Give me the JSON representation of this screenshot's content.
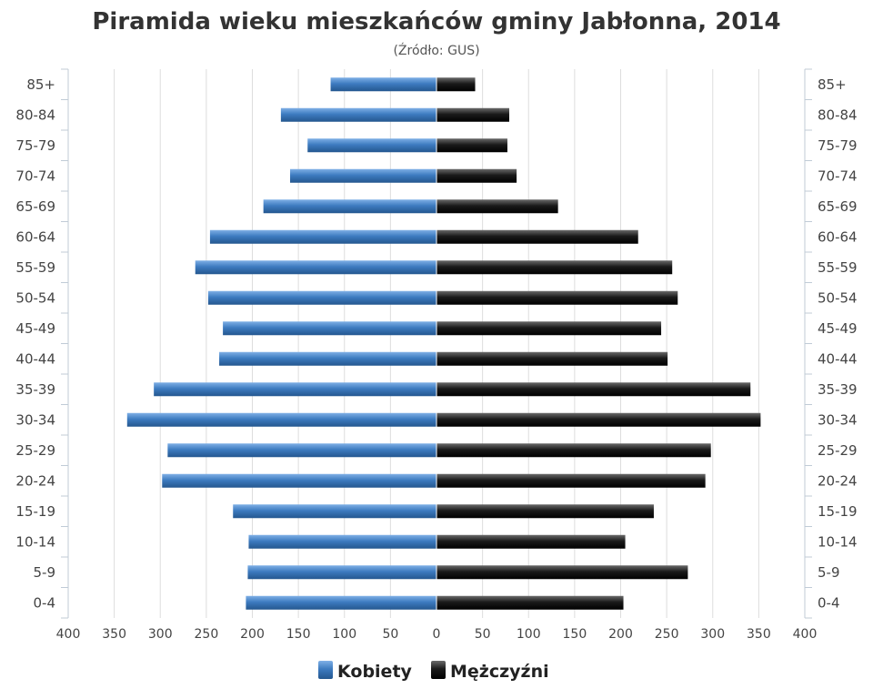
{
  "chart_data": {
    "type": "bar",
    "orientation": "horizontal",
    "layout": "population-pyramid",
    "title": "Piramida wieku mieszkańców gminy Jabłonna, 2014",
    "subtitle": "(Źródło: GUS)",
    "categories": [
      "85+",
      "80-84",
      "75-79",
      "70-74",
      "65-69",
      "60-64",
      "55-59",
      "50-54",
      "45-49",
      "40-44",
      "35-39",
      "30-34",
      "25-29",
      "20-24",
      "15-19",
      "10-14",
      "5-9",
      "0-4"
    ],
    "series": [
      {
        "name": "Kobiety",
        "color": "#3d7bc0",
        "side": "left",
        "values": [
          115,
          169,
          140,
          159,
          188,
          246,
          262,
          248,
          232,
          236,
          307,
          336,
          292,
          298,
          221,
          204,
          205,
          207
        ]
      },
      {
        "name": "Mężczyźni",
        "color": "#1a1a1a",
        "side": "right",
        "values": [
          42,
          79,
          77,
          87,
          132,
          219,
          256,
          262,
          244,
          251,
          341,
          352,
          298,
          292,
          236,
          205,
          273,
          203
        ]
      }
    ],
    "xlim": [
      -400,
      400
    ],
    "xticks": [
      -400,
      -350,
      -300,
      -250,
      -200,
      -150,
      -100,
      -50,
      0,
      50,
      100,
      150,
      200,
      250,
      300,
      350,
      400
    ],
    "xtick_labels": [
      "400",
      "350",
      "300",
      "250",
      "200",
      "150",
      "100",
      "50",
      "0",
      "50",
      "100",
      "150",
      "200",
      "250",
      "300",
      "350",
      "400"
    ],
    "grid": true,
    "legend_position": "bottom-center"
  }
}
